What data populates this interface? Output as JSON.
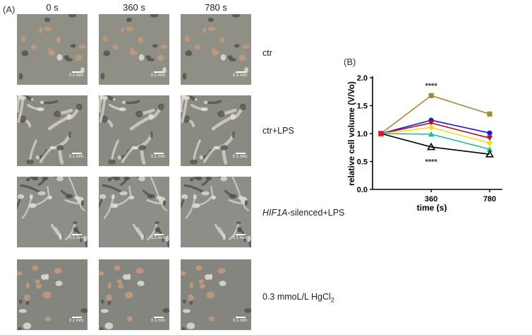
{
  "panel_a_label": "(A)",
  "panel_b_label": "(B)",
  "columns": [
    "0 s",
    "360 s",
    "780 s"
  ],
  "rows": [
    {
      "label": "ctr",
      "italic_prefix": ""
    },
    {
      "label": "ctr+LPS",
      "italic_prefix": ""
    },
    {
      "label": "-silenced+LPS",
      "italic_prefix": "HIF1A"
    },
    {
      "label": "0.3 mmoL/L HgCl",
      "subscript": "2",
      "italic_prefix": ""
    }
  ],
  "scale_bar": "0.1 mm",
  "colors": {
    "micro_bg": [
      "#8f8f86",
      "#8a8a82",
      "#8e8e88",
      "#858580"
    ]
  },
  "chart_data": {
    "type": "line",
    "xlabel": "time (s)",
    "ylabel": "relative cell volume (V/Vo)",
    "x": [
      0,
      360,
      780
    ],
    "x_tick_labels": [
      "",
      "360",
      "780"
    ],
    "ylim": [
      0.0,
      2.0
    ],
    "y_ticks": [
      "0.0",
      "0.5",
      "1.0",
      "1.5",
      "2.0"
    ],
    "grid": false,
    "series": [
      {
        "color": "#a08a3c",
        "marker": "square",
        "values": [
          1.0,
          1.68,
          1.35
        ]
      },
      {
        "color": "#1a1ad0",
        "marker": "circle",
        "values": [
          1.0,
          1.24,
          1.01
        ]
      },
      {
        "color": "#b01030",
        "marker": "triangle-down",
        "values": [
          1.0,
          1.19,
          0.92
        ]
      },
      {
        "color": "#f0e020",
        "marker": "diamond",
        "values": [
          1.0,
          1.11,
          0.83
        ]
      },
      {
        "color": "#20c08a",
        "marker": "triangle",
        "values": [
          1.0,
          0.99,
          0.72
        ]
      },
      {
        "color": "#000000",
        "marker": "triangle-open",
        "values": [
          1.0,
          0.76,
          0.63
        ]
      }
    ],
    "first_point_color": "#e0142a",
    "annotations": [
      {
        "text": "****",
        "x": 360,
        "y": 1.86
      },
      {
        "text": "****",
        "x": 360,
        "y": 0.5
      }
    ]
  }
}
